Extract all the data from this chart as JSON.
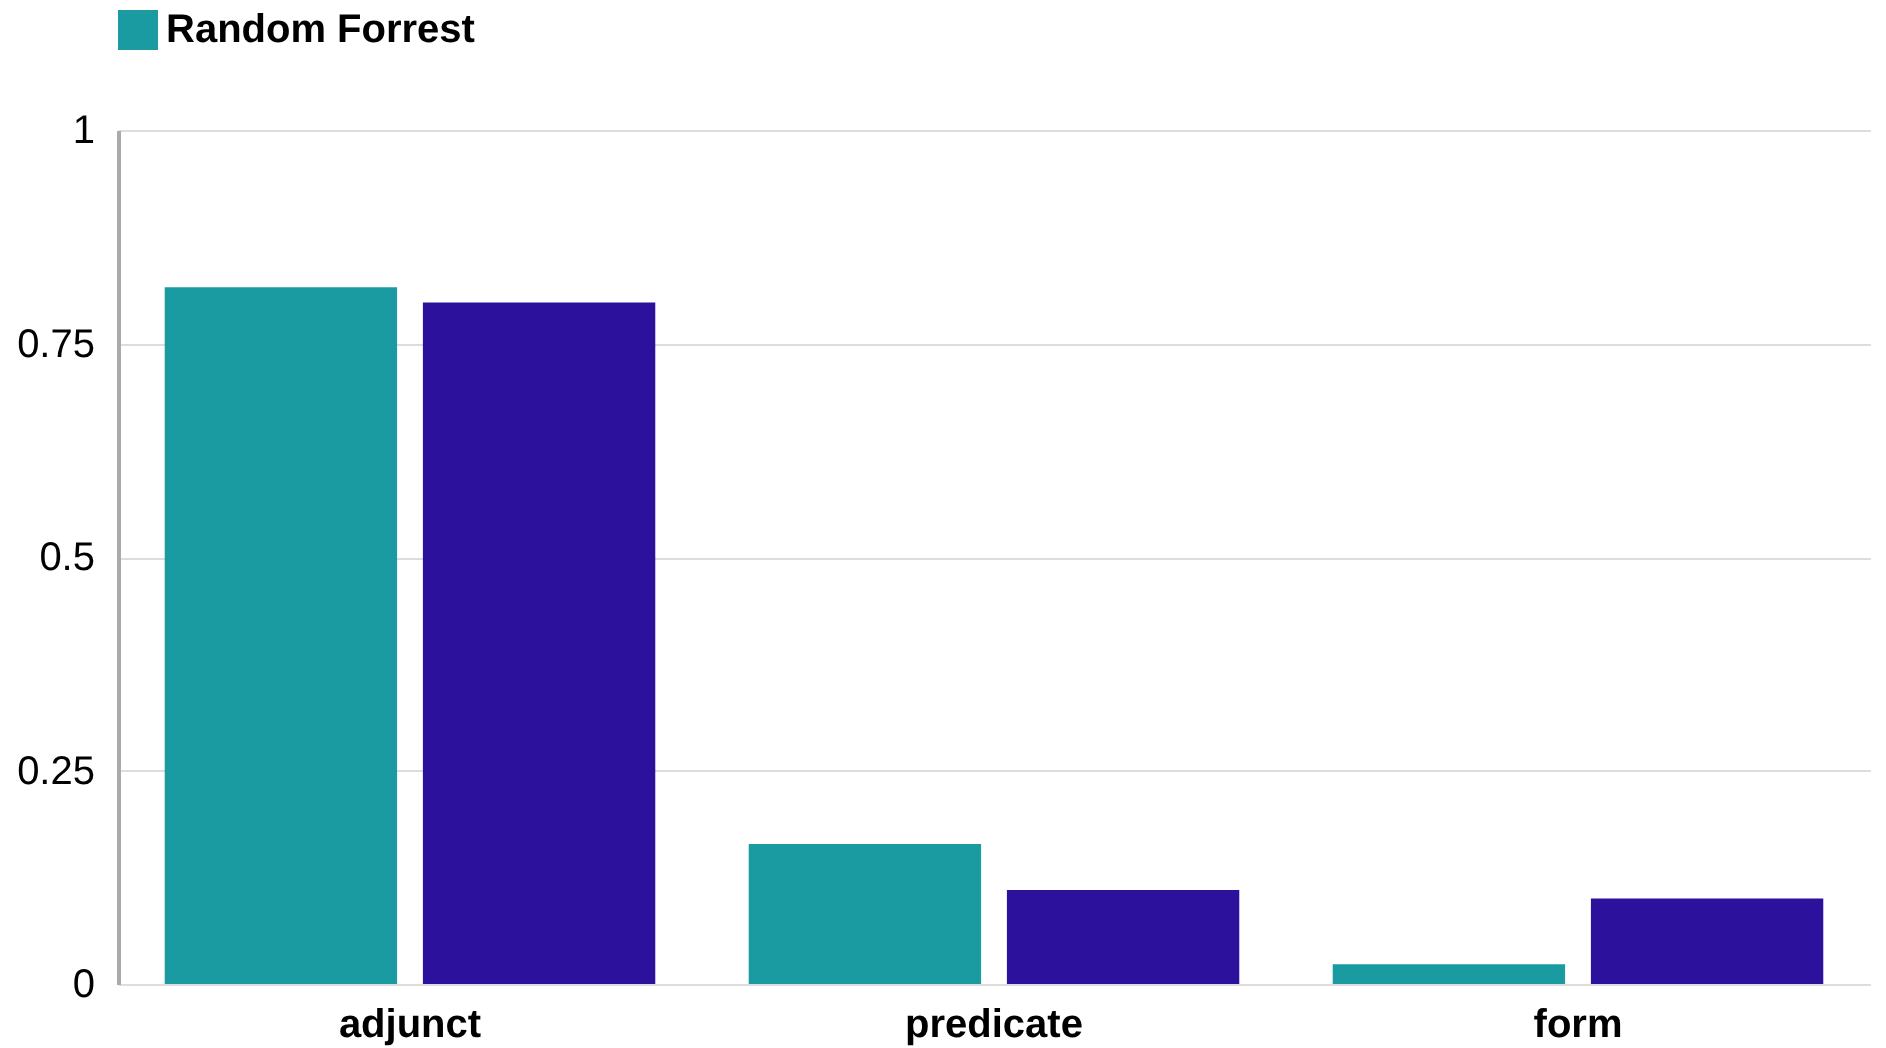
{
  "chart_data": {
    "type": "bar",
    "categories": [
      "adjunct",
      "predicate",
      "form"
    ],
    "series": [
      {
        "name": "Random Forrest",
        "color": "#1a9ba1",
        "values": [
          0.816,
          0.164,
          0.023
        ]
      },
      {
        "color": "#2c119c",
        "values": [
          0.798,
          0.11,
          0.1
        ]
      }
    ],
    "ylim": [
      0,
      1
    ],
    "yticks": [
      0,
      0.25,
      0.5,
      0.75,
      1
    ],
    "grid": "y",
    "legend": "top"
  }
}
